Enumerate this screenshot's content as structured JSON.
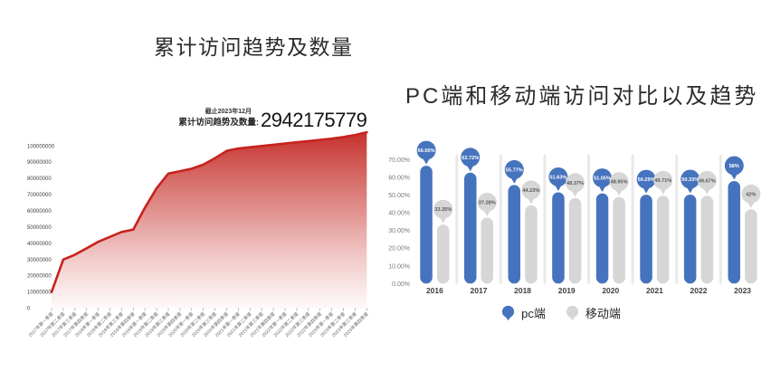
{
  "left_chart": {
    "title": "累计访问趋势及数量",
    "as_of": "截止2023年12月",
    "total_label": "累计访问趋势及数量:",
    "total_value": "2942175779"
  },
  "right_chart": {
    "title": "PC端和移动端访问对比以及趋势"
  },
  "chart_data": [
    {
      "type": "area",
      "title": "累计访问趋势及数量",
      "annotation": {
        "as_of": "截止2023年12月",
        "label": "累计访问趋势及数量:",
        "value": "2942175779"
      },
      "categories": [
        "2017年第一季度",
        "2017年第二季度",
        "2017年第三季度",
        "2017年第四季度",
        "2018年第一季度",
        "2018年第二季度",
        "2018年第三季度",
        "2018年第四季度",
        "2019年第一季度",
        "2019年第二季度",
        "2019年第三季度",
        "2019年第四季度",
        "2020年第一季度",
        "2020年第二季度",
        "2020年第三季度",
        "2020年第四季度",
        "2021年第一季度",
        "2021年第二季度",
        "2021年第三季度",
        "2021年第四季度",
        "2022年第一季度",
        "2022年第二季度",
        "2022年第三季度",
        "2022年第四季度",
        "2023年第一季度",
        "2023年第二季度",
        "2023年第三季度",
        "2023年第四季度"
      ],
      "values": [
        10000000,
        30000000,
        33000000,
        37000000,
        41000000,
        44000000,
        47000000,
        48500000,
        62000000,
        74000000,
        83000000,
        84500000,
        86000000,
        88500000,
        92500000,
        97000000,
        98500000,
        99200000,
        100000000,
        100800000,
        101500000,
        102300000,
        103000000,
        103800000,
        104500000,
        105500000,
        106800000,
        108500000
      ],
      "yticks": [
        100000000,
        90000000,
        80000000,
        70000000,
        60000000,
        50000000,
        40000000,
        30000000,
        20000000,
        10000000,
        0
      ],
      "ylim": [
        0,
        110000000
      ],
      "x_label_rotation": -45,
      "line_color": "#c7221d",
      "fill_gradient_top": "#c32823",
      "fill_gradient_bottom": "#ffffff",
      "grid": false
    },
    {
      "type": "bar",
      "variant": "lollipop",
      "title": "PC端和移动端访问对比以及趋势",
      "categories": [
        "2016",
        "2017",
        "2018",
        "2019",
        "2020",
        "2021",
        "2022",
        "2023"
      ],
      "series": [
        {
          "name": "pc端",
          "color": "#4673bd",
          "label_color": "#ffffff",
          "values": [
            66.65,
            62.72,
            55.77,
            51.63,
            51.05,
            50.29,
            50.33,
            58
          ],
          "labels": [
            "66.65%",
            "62.72%",
            "55.77%",
            "51.63%",
            "51.05%",
            "50.29%",
            "50.33%",
            "58%"
          ]
        },
        {
          "name": "移动端",
          "color": "#d6d6d6",
          "label_color": "#595959",
          "values": [
            33.35,
            37.28,
            44.23,
            48.37,
            48.95,
            49.71,
            49.67,
            42
          ],
          "labels": [
            "33.35%",
            "37.28%",
            "44.23%",
            "48.37%",
            "48.95%",
            "49.71%",
            "49.67%",
            "42%"
          ]
        }
      ],
      "yticks_percent": [
        "70.00%",
        "60.00%",
        "50.00%",
        "40.00%",
        "30.00%",
        "20.00%",
        "10.00%",
        "0.00%"
      ],
      "ylim": [
        0,
        70
      ],
      "grid": false,
      "legend_position": "bottom",
      "separator_color": "#e9e9e9"
    }
  ]
}
